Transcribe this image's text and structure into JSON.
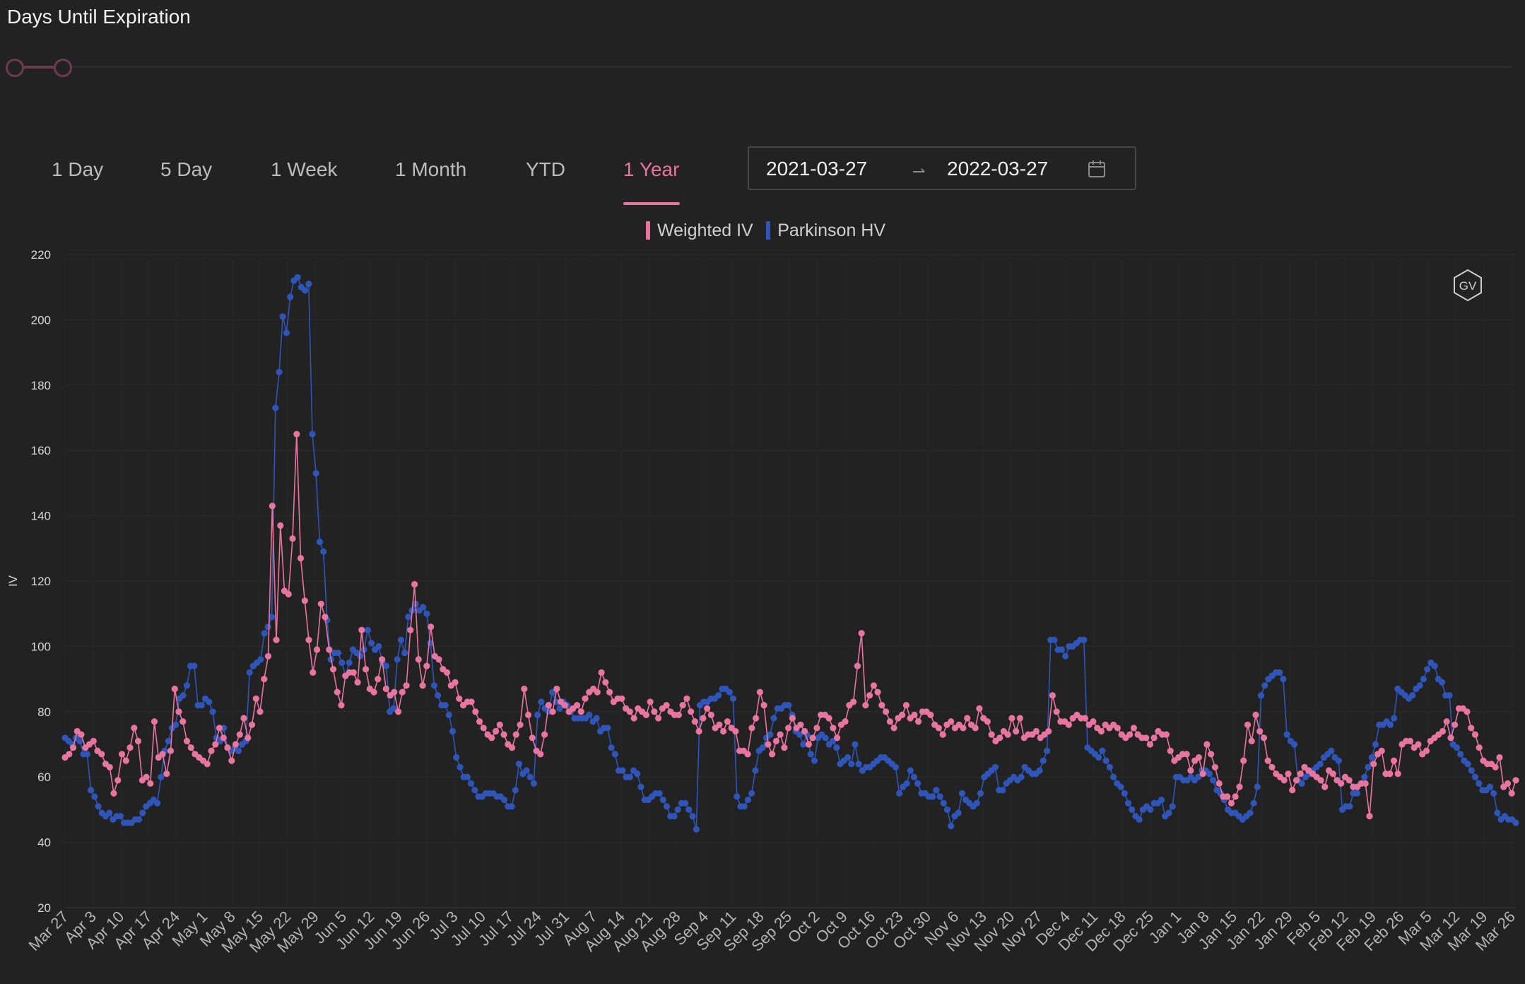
{
  "title": "Days Until Expiration",
  "tabs": [
    {
      "label": "1 Day",
      "active": false
    },
    {
      "label": "5 Day",
      "active": false
    },
    {
      "label": "1 Week",
      "active": false
    },
    {
      "label": "1 Month",
      "active": false
    },
    {
      "label": "YTD",
      "active": false
    },
    {
      "label": "1 Year",
      "active": true
    }
  ],
  "date_range": {
    "start": "2021-03-27",
    "end": "2022-03-27"
  },
  "badge": "GV",
  "colors": {
    "accent": "#e8759f",
    "weighted_iv": "#e8759f",
    "parkinson_hv": "#2f55b8",
    "background": "#222222"
  },
  "chart_data": {
    "type": "line",
    "ylabel": "IV",
    "xlabel": "",
    "ylim": [
      20,
      220
    ],
    "yticks": [
      20,
      40,
      60,
      80,
      100,
      120,
      140,
      160,
      180,
      200,
      220
    ],
    "grid": true,
    "legend_position": "top-center",
    "x_start": "2021-03-27",
    "x_end": "2022-03-27",
    "x_ticks": [
      "Mar 27",
      "Apr 3",
      "Apr 10",
      "Apr 17",
      "Apr 24",
      "May 1",
      "May 8",
      "May 15",
      "May 22",
      "May 29",
      "Jun 5",
      "Jun 12",
      "Jun 19",
      "Jun 26",
      "Jul 3",
      "Jul 10",
      "Jul 17",
      "Jul 24",
      "Jul 31",
      "Aug 7",
      "Aug 14",
      "Aug 21",
      "Aug 28",
      "Sep 4",
      "Sep 11",
      "Sep 18",
      "Sep 25",
      "Oct 2",
      "Oct 9",
      "Oct 16",
      "Oct 23",
      "Oct 30",
      "Nov 6",
      "Nov 13",
      "Nov 20",
      "Nov 27",
      "Dec 4",
      "Dec 11",
      "Dec 18",
      "Dec 25",
      "Jan 1",
      "Jan 8",
      "Jan 15",
      "Jan 22",
      "Jan 29",
      "Feb 5",
      "Feb 12",
      "Feb 19",
      "Feb 26",
      "Mar 5",
      "Mar 12",
      "Mar 19",
      "Mar 26"
    ],
    "series": [
      {
        "name": "Weighted IV",
        "color": "#e8759f",
        "values": [
          66,
          67,
          69,
          74,
          73,
          69,
          70,
          71,
          68,
          67,
          64,
          63,
          55,
          59,
          67,
          65,
          69,
          75,
          71,
          59,
          60,
          58,
          77,
          66,
          67,
          61,
          68,
          87,
          80,
          77,
          71,
          69,
          67,
          66,
          65,
          64,
          68,
          70,
          75,
          72,
          69,
          65,
          70,
          73,
          78,
          72,
          76,
          84,
          80,
          90,
          97,
          143,
          102,
          137,
          117,
          116,
          133,
          165,
          127,
          114,
          102,
          92,
          99,
          113,
          109,
          99,
          93,
          86,
          82,
          91,
          92,
          92,
          89,
          105,
          93,
          87,
          86,
          90,
          96,
          87,
          85,
          86,
          80,
          86,
          88,
          105,
          119,
          96,
          88,
          94,
          106,
          97,
          96,
          93,
          92,
          88,
          89,
          84,
          82,
          83,
          83,
          80,
          77,
          75,
          73,
          72,
          74,
          76,
          73,
          70,
          69,
          73,
          76,
          87,
          79,
          72,
          68,
          67,
          73,
          82,
          80,
          87,
          83,
          82,
          80,
          81,
          82,
          80,
          84,
          86,
          87,
          86,
          92,
          89,
          86,
          83,
          84,
          84,
          81,
          80,
          78,
          81,
          80,
          79,
          83,
          80,
          78,
          81,
          82,
          80,
          79,
          79,
          82,
          84,
          80,
          77,
          74,
          78,
          81,
          79,
          75,
          76,
          74,
          77,
          75,
          74,
          68,
          68,
          67,
          75,
          78,
          86,
          82,
          70,
          67,
          71,
          73,
          69,
          75,
          78,
          75,
          76,
          74,
          70,
          72,
          75,
          79,
          79,
          78,
          75,
          72,
          76,
          77,
          82,
          83,
          94,
          104,
          82,
          85,
          88,
          86,
          82,
          80,
          77,
          75,
          78,
          79,
          82,
          78,
          79,
          77,
          80,
          80,
          79,
          76,
          75,
          73,
          76,
          77,
          75,
          76,
          75,
          78,
          76,
          75,
          81,
          78,
          77,
          73,
          71,
          72,
          74,
          73,
          78,
          74,
          78,
          72,
          73,
          73,
          74,
          72,
          73,
          74,
          85,
          80,
          77,
          77,
          76,
          78,
          79,
          78,
          78,
          76,
          77,
          75,
          74,
          76,
          75,
          76,
          75,
          73,
          72,
          73,
          75,
          73,
          72,
          72,
          70,
          72,
          74,
          73,
          73,
          68,
          65,
          66,
          67,
          67,
          62,
          65,
          66,
          61,
          70,
          67,
          63,
          58,
          54,
          54,
          52,
          54,
          57,
          65,
          76,
          71,
          79,
          74,
          72,
          65,
          63,
          61,
          60,
          59,
          61,
          56,
          59,
          61,
          63,
          62,
          61,
          60,
          59,
          57,
          62,
          61,
          59,
          58,
          60,
          59,
          57,
          57,
          58,
          58,
          48,
          64,
          67,
          68,
          61,
          61,
          65,
          61,
          70,
          71,
          71,
          69,
          70,
          67,
          68,
          71,
          72,
          73,
          74,
          77,
          72,
          76,
          81,
          81,
          80,
          75,
          73,
          69,
          65,
          64,
          64,
          63,
          66,
          57,
          58,
          55,
          59
        ],
        "mark": "dot"
      },
      {
        "name": "Parkinson HV",
        "color": "#2f55b8",
        "values": [
          72,
          71,
          70,
          72,
          71,
          67,
          67,
          56,
          54,
          51,
          49,
          48,
          49,
          47,
          48,
          48,
          46,
          46,
          46,
          47,
          47,
          49,
          51,
          52,
          53,
          52,
          60,
          68,
          71,
          75,
          76,
          84,
          85,
          88,
          94,
          94,
          82,
          82,
          84,
          83,
          80,
          72,
          71,
          75,
          69,
          68,
          69,
          68,
          70,
          71,
          92,
          94,
          95,
          96,
          104,
          106,
          109,
          173,
          184,
          201,
          196,
          207,
          212,
          213,
          210,
          209,
          211,
          165,
          153,
          132,
          129,
          108,
          96,
          98,
          98,
          95,
          91,
          95,
          99,
          98,
          97,
          99,
          105,
          101,
          99,
          100,
          95,
          94,
          80,
          81,
          96,
          102,
          98,
          109,
          111,
          113,
          111,
          112,
          110,
          101,
          88,
          85,
          82,
          82,
          79,
          74,
          66,
          63,
          60,
          60,
          58,
          56,
          54,
          54,
          55,
          55,
          55,
          54,
          54,
          53,
          51,
          51,
          56,
          64,
          61,
          62,
          60,
          58,
          79,
          83,
          81,
          80,
          86,
          83,
          81,
          83,
          82,
          80,
          78,
          78,
          78,
          78,
          79,
          77,
          78,
          74,
          75,
          75,
          69,
          67,
          62,
          62,
          60,
          60,
          62,
          61,
          57,
          53,
          53,
          54,
          55,
          55,
          53,
          51,
          48,
          48,
          50,
          52,
          52,
          50,
          48,
          44,
          82,
          83,
          83,
          84,
          84,
          85,
          87,
          87,
          86,
          84,
          54,
          51,
          51,
          53,
          55,
          62,
          68,
          69,
          72,
          73,
          78,
          81,
          81,
          82,
          82,
          79,
          74,
          73,
          70,
          73,
          67,
          65,
          72,
          73,
          72,
          70,
          71,
          69,
          64,
          65,
          66,
          64,
          70,
          64,
          62,
          63,
          63,
          64,
          65,
          66,
          66,
          65,
          64,
          63,
          55,
          57,
          58,
          62,
          60,
          58,
          55,
          55,
          54,
          54,
          56,
          54,
          52,
          50,
          45,
          48,
          49,
          55,
          53,
          52,
          51,
          52,
          55,
          60,
          61,
          62,
          63,
          56,
          56,
          58,
          59,
          60,
          59,
          60,
          63,
          62,
          61,
          61,
          62,
          65,
          68,
          102,
          102,
          99,
          99,
          97,
          100,
          100,
          101,
          102,
          102,
          69,
          68,
          67,
          66,
          68,
          65,
          63,
          60,
          58,
          57,
          55,
          52,
          50,
          48,
          47,
          50,
          51,
          50,
          52,
          52,
          53,
          48,
          49,
          51,
          60,
          60,
          59,
          59,
          60,
          59,
          60,
          62,
          62,
          61,
          59,
          56,
          55,
          53,
          50,
          49,
          49,
          48,
          47,
          48,
          49,
          52,
          57,
          85,
          88,
          90,
          91,
          92,
          92,
          90,
          73,
          71,
          70,
          59,
          58,
          60,
          61,
          62,
          63,
          64,
          66,
          67,
          68,
          66,
          65,
          50,
          51,
          51,
          55,
          55,
          58,
          60,
          63,
          66,
          70,
          76,
          76,
          77,
          76,
          78,
          87,
          86,
          85,
          84,
          85,
          87,
          88,
          90,
          93,
          95,
          94,
          90,
          89,
          85,
          85,
          70,
          69,
          67,
          65,
          64,
          62,
          60,
          58,
          56,
          56,
          57,
          55,
          49,
          47,
          48,
          47,
          47,
          46
        ],
        "mark": "dot"
      }
    ]
  }
}
